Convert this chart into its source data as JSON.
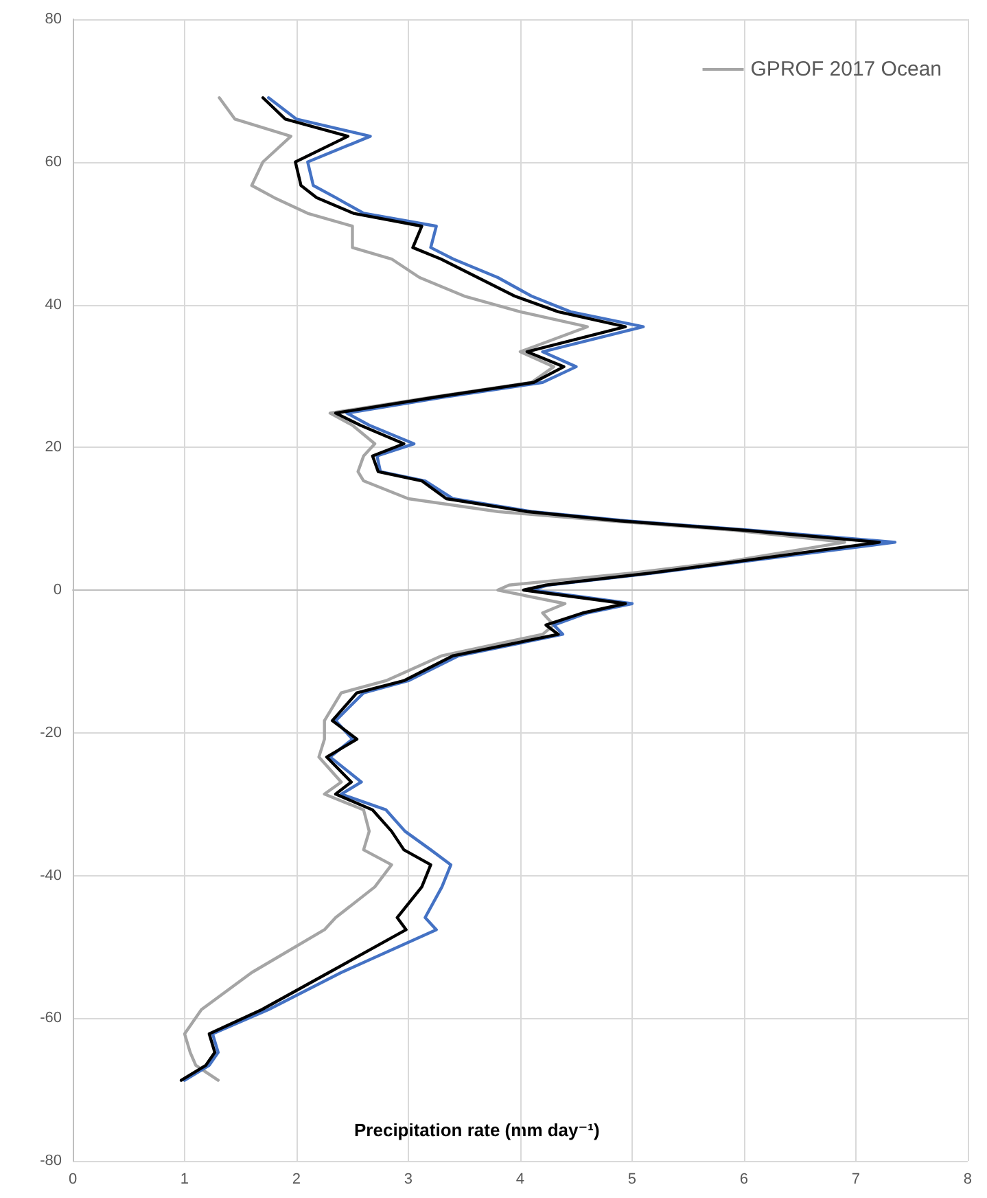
{
  "chart_data": {
    "type": "line",
    "xlabel": "Precipitation rate (mm day⁻¹)",
    "xlim": [
      0,
      8
    ],
    "xticks": [
      0,
      1,
      2,
      3,
      4,
      5,
      6,
      7,
      8
    ],
    "ylim": [
      -80,
      80
    ],
    "yticks": [
      -80,
      -60,
      -40,
      -20,
      0,
      20,
      40,
      60,
      80
    ],
    "grid": true,
    "legend": "top right",
    "marker": "none",
    "line_style": "solid",
    "series": [
      {
        "name": "GPROF 2017 Ocean",
        "color": "#a5a5a5",
        "x": [
          1.31,
          1.45,
          1.95,
          1.7,
          1.6,
          1.8,
          2.1,
          2.5,
          2.5,
          2.85,
          3.1,
          3.5,
          4.0,
          4.6,
          4.0,
          4.3,
          4.1,
          3.2,
          2.3,
          2.5,
          2.7,
          2.6,
          2.55,
          2.6,
          3.0,
          3.8,
          4.8,
          5.9,
          6.9,
          5.9,
          5.0,
          3.9,
          3.8,
          4.4,
          4.2,
          4.3,
          4.2,
          3.3,
          2.8,
          2.4,
          2.25,
          2.25,
          2.2,
          2.4,
          2.25,
          2.6,
          2.65,
          2.6,
          2.85,
          2.7,
          2.35,
          2.25,
          1.6,
          1.15,
          1.0,
          1.05,
          1.1,
          1.3
        ],
        "values": [
          69,
          66,
          63.6,
          60,
          56.7,
          55,
          52.8,
          51,
          48,
          46.4,
          43.8,
          41.2,
          39,
          36.9,
          33.4,
          31.3,
          29.1,
          27,
          24.8,
          23.1,
          20.5,
          18.8,
          16.6,
          15.3,
          12.8,
          11,
          9.7,
          8.4,
          6.7,
          4.1,
          2.4,
          0.7,
          0,
          -1.9,
          -3.2,
          -4.9,
          -6.2,
          -9.2,
          -12.7,
          -14.4,
          -18.3,
          -20.9,
          -23.4,
          -26.9,
          -28.6,
          -30.8,
          -33.8,
          -36.4,
          -38.5,
          -41.6,
          -45.9,
          -47.6,
          -53.6,
          -58.8,
          -62.2,
          -64.8,
          -66.6,
          -68.7
        ]
      },
      {
        "color": "#4472c4",
        "x": [
          1.75,
          2.0,
          2.66,
          2.1,
          2.15,
          2.35,
          2.6,
          3.25,
          3.2,
          3.4,
          3.8,
          4.1,
          4.45,
          5.1,
          4.2,
          4.5,
          4.2,
          3.3,
          2.45,
          2.65,
          3.05,
          2.72,
          2.75,
          3.15,
          3.4,
          4.1,
          4.95,
          6.05,
          7.35,
          6.05,
          5.2,
          4.25,
          4.1,
          5.0,
          4.6,
          4.3,
          4.38,
          3.45,
          3.0,
          2.6,
          2.35,
          2.5,
          2.3,
          2.58,
          2.4,
          2.8,
          2.97,
          3.2,
          3.38,
          3.3,
          3.15,
          3.25,
          2.4,
          1.75,
          1.25,
          1.3,
          1.22,
          1.0
        ],
        "values": [
          69,
          66,
          63.6,
          60,
          56.7,
          55,
          52.8,
          51,
          48,
          46.4,
          43.8,
          41.2,
          39,
          36.9,
          33.4,
          31.3,
          29.1,
          27,
          24.8,
          23.1,
          20.5,
          18.8,
          16.6,
          15.3,
          12.8,
          11,
          9.7,
          8.4,
          6.7,
          4.1,
          2.4,
          0.7,
          0,
          -1.9,
          -3.2,
          -4.9,
          -6.2,
          -9.2,
          -12.7,
          -14.4,
          -18.3,
          -20.9,
          -23.4,
          -26.9,
          -28.6,
          -30.8,
          -33.8,
          -36.4,
          -38.5,
          -41.6,
          -45.9,
          -47.6,
          -53.6,
          -58.8,
          -62.2,
          -64.8,
          -66.6,
          -68.7
        ]
      },
      {
        "color": "#000000",
        "x": [
          1.7,
          1.9,
          2.46,
          1.99,
          2.04,
          2.18,
          2.51,
          3.12,
          3.04,
          3.29,
          3.62,
          3.95,
          4.34,
          4.94,
          4.06,
          4.39,
          4.12,
          3.23,
          2.35,
          2.57,
          2.96,
          2.68,
          2.73,
          3.12,
          3.34,
          4.06,
          4.89,
          5.99,
          7.21,
          5.99,
          5.17,
          4.23,
          4.03,
          4.94,
          4.56,
          4.23,
          4.34,
          3.4,
          2.96,
          2.54,
          2.32,
          2.54,
          2.27,
          2.49,
          2.35,
          2.68,
          2.85,
          2.96,
          3.2,
          3.12,
          2.9,
          2.98,
          2.29,
          1.69,
          1.22,
          1.27,
          1.19,
          0.97
        ],
        "values": [
          69,
          66,
          63.6,
          60,
          56.7,
          55,
          52.8,
          51,
          48,
          46.4,
          43.8,
          41.2,
          39,
          36.9,
          33.4,
          31.3,
          29.1,
          27,
          24.8,
          23.1,
          20.5,
          18.8,
          16.6,
          15.3,
          12.8,
          11,
          9.7,
          8.4,
          6.7,
          4.1,
          2.4,
          0.7,
          0,
          -1.9,
          -3.2,
          -4.9,
          -6.2,
          -9.2,
          -12.7,
          -14.4,
          -18.3,
          -20.9,
          -23.4,
          -26.9,
          -28.6,
          -30.8,
          -33.8,
          -36.4,
          -38.5,
          -41.6,
          -45.9,
          -47.6,
          -53.6,
          -58.8,
          -62.2,
          -64.8,
          -66.6,
          -68.7
        ]
      }
    ]
  }
}
